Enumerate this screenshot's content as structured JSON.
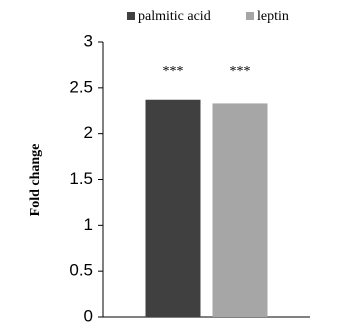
{
  "chart_data": {
    "type": "bar",
    "y_label": "Fold change",
    "categories": [
      null
    ],
    "series": [
      {
        "name": "palmitic acid",
        "color": "#404040",
        "values": [
          2.37
        ]
      },
      {
        "name": "leptin",
        "color": "#a6a6a6",
        "values": [
          2.33
        ]
      }
    ],
    "annotations": [
      "***",
      "***"
    ],
    "ylim": [
      0,
      3
    ],
    "yticks": [
      0,
      0.5,
      1,
      1.5,
      2,
      2.5,
      3
    ],
    "grid": false,
    "legend": "top"
  }
}
